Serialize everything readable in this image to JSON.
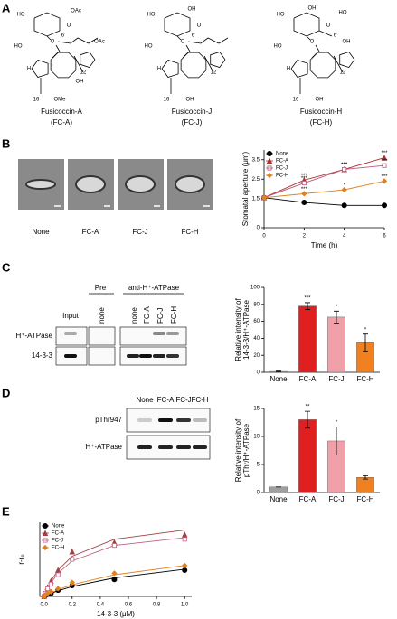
{
  "panel_labels": [
    "A",
    "B",
    "C",
    "D",
    "E"
  ],
  "compounds": [
    {
      "name": "Fusicoccin-A",
      "abbr": "(FC-A)",
      "labels": [
        "HO",
        "OAc",
        "O",
        "6'",
        "OAc",
        "HO",
        "O",
        "H",
        "12",
        "OH",
        "16",
        "OMe"
      ]
    },
    {
      "name": "Fusicoccin-J",
      "abbr": "(FC-J)",
      "labels": [
        "HO",
        "OH",
        "O",
        "6'",
        "HO",
        "O",
        "H",
        "12",
        "16",
        "OH"
      ]
    },
    {
      "name": "Fusicoccin-H",
      "abbr": "(FC-H)",
      "labels": [
        "HO",
        "OH",
        "HO",
        "O",
        "6'",
        "OH",
        "HO",
        "O",
        "H",
        "12",
        "16",
        "OH"
      ]
    }
  ],
  "micrographs": {
    "labels": [
      "None",
      "FC-A",
      "FC-J",
      "FC-H"
    ]
  },
  "blot_c": {
    "columns": [
      "Input",
      "none",
      "none",
      "FC-A",
      "FC-J",
      "FC-H"
    ],
    "groups": [
      "Pre",
      "anti-H⁺-ATPase"
    ],
    "rows": [
      "H⁺-ATPase",
      "14-3-3"
    ]
  },
  "blot_d": {
    "columns": [
      "None",
      "FC-A",
      "FC-J",
      "FC-H"
    ],
    "rows": [
      "pThr947",
      "H⁺-ATPase"
    ]
  },
  "chart_data": [
    {
      "type": "line",
      "ylabel": "Stomatal aperture (μm)",
      "xlabel": "Time (h)",
      "x": [
        0,
        2,
        4,
        6
      ],
      "xlim": [
        0,
        6
      ],
      "xticks": [
        0,
        2,
        4,
        6
      ],
      "ylim": [
        0,
        4
      ],
      "yticks": [
        0,
        1.5,
        2.5,
        3.5
      ],
      "legend": "upper left",
      "series": [
        {
          "name": "None",
          "color": "#000000",
          "marker": "circle",
          "values": [
            1.55,
            1.3,
            1.15,
            1.15
          ]
        },
        {
          "name": "FC-A",
          "color": "#b03030",
          "marker": "triangle",
          "values": [
            1.55,
            2.45,
            3.0,
            3.6
          ],
          "stars": [
            null,
            "***",
            "***",
            "***"
          ]
        },
        {
          "name": "FC-J",
          "color": "#b05a7a",
          "marker": "square",
          "values": [
            1.55,
            2.3,
            3.0,
            3.2
          ],
          "stars": [
            null,
            "***",
            "***",
            "***"
          ]
        },
        {
          "name": "FC-H",
          "color": "#e08020",
          "marker": "diamond",
          "values": [
            1.55,
            1.75,
            1.95,
            2.4
          ],
          "stars": [
            null,
            "***",
            "*",
            "***"
          ]
        }
      ]
    },
    {
      "type": "bar",
      "ylabel": [
        "Relative intensity of",
        "14-3-3/H⁺-ATPase"
      ],
      "categories": [
        "None",
        "FC-A",
        "FC-J",
        "FC-H"
      ],
      "values": [
        1,
        78,
        65,
        35
      ],
      "errors": [
        0.5,
        4,
        7,
        10
      ],
      "colors": [
        "#a0a0a0",
        "#e02020",
        "#f0a0a8",
        "#f08020"
      ],
      "stars": [
        null,
        "***",
        "*",
        "*"
      ],
      "ylim": [
        0,
        100
      ],
      "yticks": [
        0,
        20,
        40,
        60,
        80,
        100
      ]
    },
    {
      "type": "bar",
      "ylabel": [
        "Relative intensity of",
        "pThr/H⁺-ATPase"
      ],
      "categories": [
        "None",
        "FC-A",
        "FC-J",
        "FC-H"
      ],
      "values": [
        1,
        13,
        9.2,
        2.7
      ],
      "errors": [
        0,
        1.5,
        2.5,
        0.3
      ],
      "colors": [
        "#a0a0a0",
        "#e02020",
        "#f0a0a8",
        "#f08020"
      ],
      "stars": [
        null,
        "**",
        "*",
        null
      ],
      "ylim": [
        0,
        15
      ],
      "yticks": [
        0,
        5,
        10,
        15
      ]
    },
    {
      "type": "scatter",
      "ylabel": "r-r₀",
      "xlabel": "14-3-3 (μM)",
      "x": [
        0,
        0.01,
        0.025,
        0.05,
        0.1,
        0.2,
        0.5,
        1.0
      ],
      "xlim": [
        -0.03,
        1.05
      ],
      "xticks": [
        {
          "value": 0,
          "label": "0.0"
        },
        0.2,
        0.4,
        0.6,
        0.8,
        {
          "value": 1,
          "label": "1.0"
        }
      ],
      "ylim": [
        0,
        240
      ],
      "legend": "upper left",
      "series": [
        {
          "name": "None",
          "color": "#000000",
          "marker": "circle",
          "values": [
            0,
            3,
            8,
            10,
            20,
            35,
            55,
            85
          ],
          "fit": [
            0,
            2,
            5,
            10,
            18,
            32,
            60,
            88
          ]
        },
        {
          "name": "FC-A",
          "color": "#a04040",
          "marker": "triangle",
          "values": [
            0,
            10,
            30,
            50,
            85,
            145,
            175,
            200
          ],
          "fit": [
            0,
            12,
            28,
            50,
            85,
            130,
            185,
            215
          ]
        },
        {
          "name": "FC-J",
          "color": "#c06080",
          "marker": "square",
          "values": [
            0,
            10,
            25,
            40,
            70,
            120,
            165,
            185
          ],
          "fit": [
            0,
            10,
            24,
            44,
            75,
            115,
            165,
            190
          ]
        },
        {
          "name": "FC-H",
          "color": "#e08020",
          "marker": "diamond",
          "values": [
            0,
            5,
            10,
            15,
            25,
            45,
            75,
            100
          ],
          "fit": [
            0,
            3,
            7,
            12,
            22,
            38,
            70,
            100
          ]
        }
      ]
    }
  ]
}
